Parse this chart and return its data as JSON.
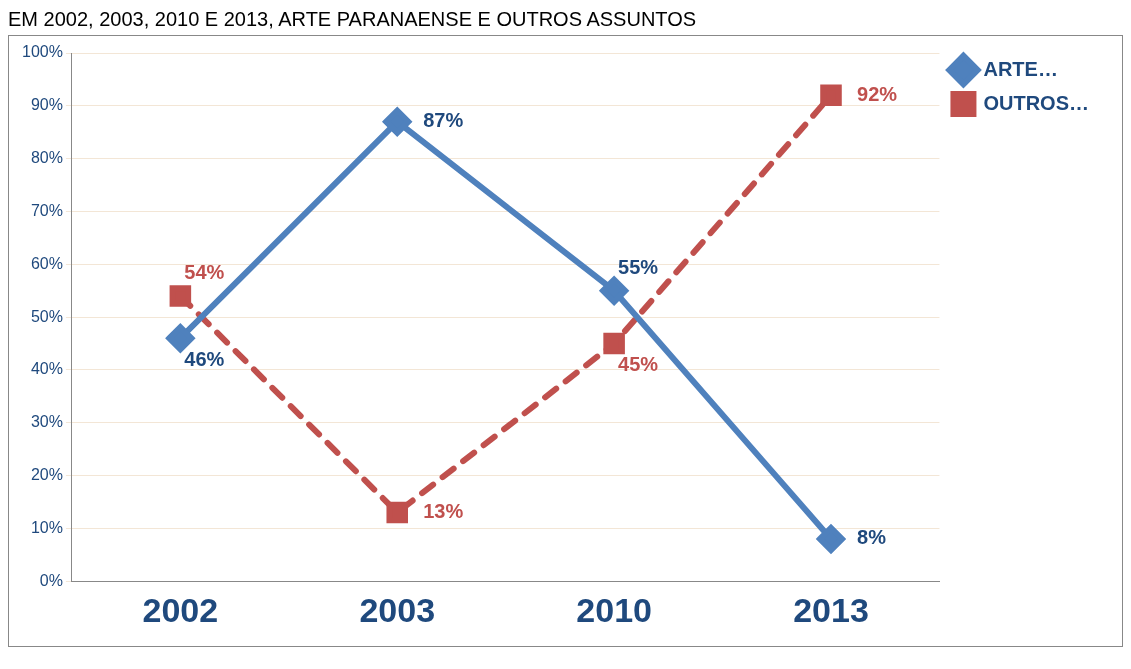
{
  "chart_data": {
    "type": "line",
    "title": "EM 2002, 2003, 2010 E 2013, ARTE PARANAENSE E OUTROS ASSUNTOS",
    "categories": [
      "2002",
      "2003",
      "2010",
      "2013"
    ],
    "series": [
      {
        "name": "ARTE…",
        "color": "#4f81bd",
        "values": [
          46,
          87,
          55,
          8
        ],
        "value_labels": [
          "46%",
          "87%",
          "55%",
          "8%"
        ],
        "marker": "diamond",
        "line_style": "solid"
      },
      {
        "name": "OUTROS…",
        "color": "#c0504d",
        "values": [
          54,
          13,
          45,
          92
        ],
        "value_labels": [
          "54%",
          "13%",
          "45%",
          "92%"
        ],
        "marker": "square",
        "line_style": "dashed"
      }
    ],
    "ylim": [
      0,
      100
    ],
    "yticks": [
      {
        "value": 0,
        "label": "0%"
      },
      {
        "value": 10,
        "label": "10%"
      },
      {
        "value": 20,
        "label": "20%"
      },
      {
        "value": 30,
        "label": "30%"
      },
      {
        "value": 40,
        "label": "40%"
      },
      {
        "value": 50,
        "label": "50%"
      },
      {
        "value": 60,
        "label": "60%"
      },
      {
        "value": 70,
        "label": "70%"
      },
      {
        "value": 80,
        "label": "80%"
      },
      {
        "value": 90,
        "label": "90%"
      },
      {
        "value": 100,
        "label": "100%"
      }
    ],
    "grid": "y",
    "legend": "top right"
  }
}
